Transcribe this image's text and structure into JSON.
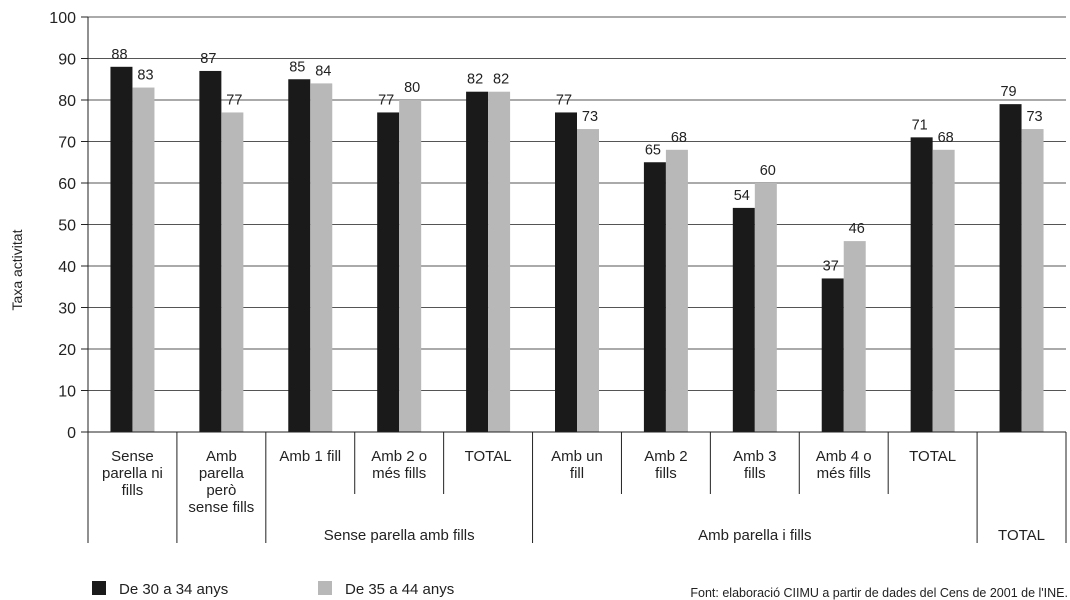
{
  "chart_data": {
    "type": "bar",
    "ylabel": "Taxa activitat",
    "ylim": [
      0,
      100
    ],
    "yticks": [
      0,
      10,
      20,
      30,
      40,
      50,
      60,
      70,
      80,
      90,
      100
    ],
    "grid": true,
    "categories": [
      [
        "Sense",
        "parella ni",
        "fills"
      ],
      [
        "Amb",
        "parella",
        "però",
        "sense fills"
      ],
      [
        "Amb 1 fill"
      ],
      [
        "Amb 2 o",
        "més fills"
      ],
      [
        "TOTAL"
      ],
      [
        "Amb un",
        "fill"
      ],
      [
        "Amb 2",
        "fills"
      ],
      [
        "Amb 3",
        "fills"
      ],
      [
        "Amb 4 o",
        "més fills"
      ],
      [
        "TOTAL"
      ],
      [
        ""
      ]
    ],
    "groups": [
      {
        "label": "",
        "start": 0,
        "end": 0
      },
      {
        "label": "",
        "start": 1,
        "end": 1
      },
      {
        "label": "Sense parella amb fills",
        "start": 2,
        "end": 4
      },
      {
        "label": "Amb parella i fills",
        "start": 5,
        "end": 9
      },
      {
        "label": "TOTAL",
        "start": 10,
        "end": 10
      }
    ],
    "series": [
      {
        "name": "De 30 a 34 anys",
        "color": "#1a1a1a",
        "values": [
          88,
          87,
          85,
          77,
          82,
          77,
          65,
          54,
          37,
          71,
          79
        ]
      },
      {
        "name": "De 35 a 44 anys",
        "color": "#b8b8b8",
        "values": [
          83,
          77,
          84,
          80,
          82,
          73,
          68,
          60,
          46,
          68,
          73
        ]
      }
    ],
    "legend_position": "bottom-left",
    "source": "Font: elaboració CIIMU a partir de dades del Cens de 2001 de l'INE."
  }
}
